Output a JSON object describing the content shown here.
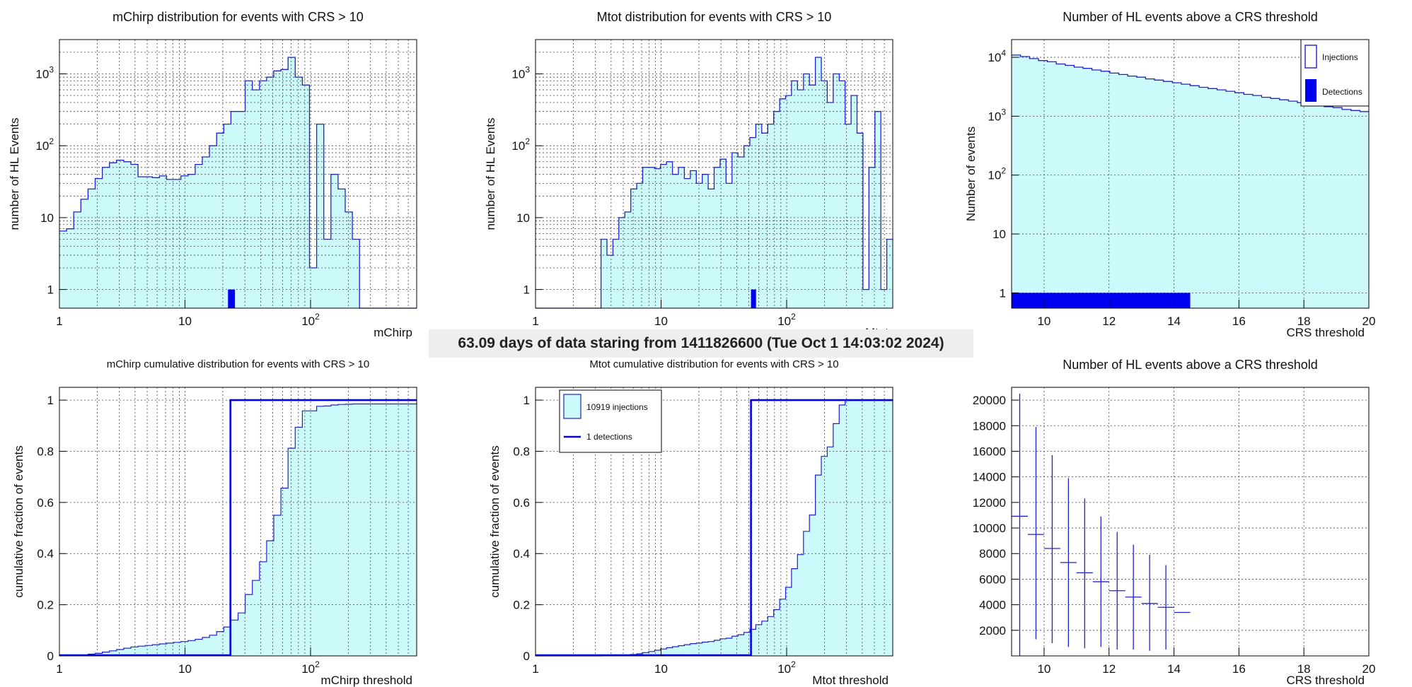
{
  "banner": "63.09 days of data staring from 1411826600 (Tue Oct  1 14:03:02 2024)",
  "colors": {
    "fill": "#ccfafa",
    "line": "#2020d0",
    "detect": "#0000f0"
  },
  "chart_data": [
    {
      "id": "mchirp",
      "type": "bar",
      "title": "mChirp distribution for events with CRS > 10",
      "xlabel": "mChirp",
      "ylabel": "number of HL Events",
      "xscale": "log",
      "yscale": "log",
      "xlim": [
        1,
        700
      ],
      "ylim": [
        0.55,
        3000
      ],
      "xticks": [
        {
          "v": 1,
          "t": "1"
        },
        {
          "v": 10,
          "t": "10"
        },
        {
          "v": 100,
          "t": "10",
          "sup": "2"
        }
      ],
      "yticks": [
        {
          "v": 1,
          "t": "1"
        },
        {
          "v": 10,
          "t": "10"
        },
        {
          "v": 100,
          "t": "10",
          "sup": "2"
        },
        {
          "v": 1000,
          "t": "10",
          "sup": "3"
        }
      ],
      "grid": true,
      "injections": [
        6.5,
        7,
        12,
        18,
        25,
        35,
        50,
        58,
        63,
        60,
        55,
        37,
        37,
        36,
        38,
        34,
        34,
        38,
        40,
        55,
        70,
        100,
        150,
        200,
        300,
        300,
        800,
        600,
        800,
        900,
        1100,
        1150,
        1700,
        900,
        700,
        2,
        200,
        5,
        40,
        25,
        12,
        5,
        0.1,
        0.1,
        0.1,
        0.1,
        0.1,
        0.1,
        0.1,
        0.1
      ],
      "detections": [
        {
          "x0": 22,
          "x1": 25,
          "y": 1
        }
      ]
    },
    {
      "id": "mtot",
      "type": "bar",
      "title": "Mtot distribution for events with CRS > 10",
      "xlabel": "Mtot",
      "ylabel": "number of HL Events",
      "xscale": "log",
      "yscale": "log",
      "xlim": [
        1,
        700
      ],
      "ylim": [
        0.55,
        3000
      ],
      "xticks": [
        {
          "v": 1,
          "t": "1"
        },
        {
          "v": 10,
          "t": "10"
        },
        {
          "v": 100,
          "t": "10",
          "sup": "2"
        }
      ],
      "yticks": [
        {
          "v": 1,
          "t": "1"
        },
        {
          "v": 10,
          "t": "10"
        },
        {
          "v": 100,
          "t": "10",
          "sup": "2"
        },
        {
          "v": 1000,
          "t": "10",
          "sup": "3"
        }
      ],
      "grid": true,
      "injections": [
        0.1,
        0.1,
        0.1,
        0.1,
        0.1,
        0.1,
        0.1,
        0.1,
        0.1,
        0.1,
        0.1,
        5,
        3,
        5,
        10,
        12,
        25,
        30,
        50,
        50,
        48,
        55,
        60,
        40,
        50,
        35,
        45,
        30,
        40,
        25,
        50,
        65,
        30,
        80,
        70,
        100,
        130,
        200,
        150,
        200,
        300,
        450,
        500,
        800,
        600,
        1000,
        700,
        1700,
        800,
        400,
        1000,
        800,
        200,
        500,
        150,
        1,
        50,
        300,
        1,
        5
      ],
      "detections": [
        {
          "x0": 52,
          "x1": 57,
          "y": 1
        }
      ]
    },
    {
      "id": "crs-counts",
      "type": "bar",
      "title": "Number of HL events above a CRS threshold",
      "xlabel": "CRS threshold",
      "ylabel": "Number of events",
      "xscale": "linear",
      "yscale": "log",
      "xlim": [
        9,
        20
      ],
      "ylim": [
        0.55,
        20000
      ],
      "xticks": [
        {
          "v": 10,
          "t": "10"
        },
        {
          "v": 12,
          "t": "12"
        },
        {
          "v": 14,
          "t": "14"
        },
        {
          "v": 16,
          "t": "16"
        },
        {
          "v": 18,
          "t": "18"
        },
        {
          "v": 20,
          "t": "20"
        }
      ],
      "yticks": [
        {
          "v": 1,
          "t": "1"
        },
        {
          "v": 10,
          "t": "10"
        },
        {
          "v": 100,
          "t": "10",
          "sup": "2"
        },
        {
          "v": 1000,
          "t": "10",
          "sup": "3"
        },
        {
          "v": 10000,
          "t": "10",
          "sup": "4"
        }
      ],
      "grid": true,
      "injections": [
        10919,
        10300,
        9500,
        8800,
        8400,
        7700,
        7300,
        6800,
        6500,
        6100,
        5800,
        5400,
        5100,
        4800,
        4600,
        4300,
        4100,
        3900,
        3700,
        3500,
        3300,
        3100,
        2950,
        2800,
        2650,
        2500,
        2350,
        2250,
        2100,
        2000,
        1900,
        1800,
        1700,
        1600,
        1550,
        1450,
        1400,
        1300,
        1250,
        1200
      ],
      "detections": [
        {
          "x0": 9,
          "x1": 14.5,
          "y": 1
        }
      ],
      "legend": {
        "position": "top-right",
        "entries": [
          "Injections",
          "Detections"
        ]
      }
    },
    {
      "id": "mchirp-cum",
      "type": "line",
      "title": "mChirp cumulative distribution for events with CRS > 10",
      "xlabel": "mChirp threshold",
      "ylabel": "cumulative fraction of events",
      "xscale": "log",
      "yscale": "linear",
      "xlim": [
        1,
        700
      ],
      "ylim": [
        0,
        1.05
      ],
      "xticks": [
        {
          "v": 1,
          "t": "1"
        },
        {
          "v": 10,
          "t": "10"
        },
        {
          "v": 100,
          "t": "10",
          "sup": "2"
        }
      ],
      "yticks": [
        {
          "v": 0,
          "t": "0"
        },
        {
          "v": 0.2,
          "t": "0.2"
        },
        {
          "v": 0.4,
          "t": "0.4"
        },
        {
          "v": 0.6,
          "t": "0.6"
        },
        {
          "v": 0.8,
          "t": "0.8"
        },
        {
          "v": 1,
          "t": "1"
        }
      ],
      "grid": true,
      "cumulative": [
        0.0006,
        0.0013,
        0.0025,
        0.004,
        0.007,
        0.01,
        0.015,
        0.02,
        0.025,
        0.03,
        0.035,
        0.038,
        0.041,
        0.044,
        0.047,
        0.05,
        0.053,
        0.056,
        0.06,
        0.065,
        0.072,
        0.081,
        0.095,
        0.113,
        0.14,
        0.168,
        0.24,
        0.295,
        0.368,
        0.45,
        0.55,
        0.656,
        0.812,
        0.894,
        0.958,
        0.958,
        0.976,
        0.977,
        0.981,
        0.983,
        0.984,
        0.985,
        0.985,
        0.985,
        0.985,
        0.985,
        0.985,
        0.985,
        0.985,
        0.985
      ],
      "detection_step_x": 23
    },
    {
      "id": "mtot-cum",
      "type": "line",
      "title": "Mtot cumulative distribution for events with CRS > 10",
      "xlabel": "Mtot threshold",
      "ylabel": "cumulative fraction of events",
      "xscale": "log",
      "yscale": "linear",
      "xlim": [
        1,
        700
      ],
      "ylim": [
        0,
        1.05
      ],
      "xticks": [
        {
          "v": 1,
          "t": "1"
        },
        {
          "v": 10,
          "t": "10"
        },
        {
          "v": 100,
          "t": "10",
          "sup": "2"
        }
      ],
      "yticks": [
        {
          "v": 0,
          "t": "0"
        },
        {
          "v": 0.2,
          "t": "0.2"
        },
        {
          "v": 0.4,
          "t": "0.4"
        },
        {
          "v": 0.6,
          "t": "0.6"
        },
        {
          "v": 0.8,
          "t": "0.8"
        },
        {
          "v": 1,
          "t": "1"
        }
      ],
      "grid": true,
      "cumulative": [
        0,
        0,
        0,
        0,
        0,
        0,
        0,
        0,
        0,
        0,
        0,
        0.0005,
        0.0008,
        0.0012,
        0.0021,
        0.0032,
        0.0055,
        0.0082,
        0.013,
        0.017,
        0.022,
        0.027,
        0.032,
        0.036,
        0.04,
        0.044,
        0.048,
        0.05,
        0.054,
        0.056,
        0.061,
        0.067,
        0.069,
        0.077,
        0.083,
        0.092,
        0.104,
        0.122,
        0.136,
        0.154,
        0.181,
        0.222,
        0.268,
        0.341,
        0.396,
        0.487,
        0.551,
        0.707,
        0.78,
        0.817,
        0.908,
        0.981,
        0.999,
        1.0,
        1.0,
        1.0,
        1.0,
        1.0,
        1.0,
        1.0
      ],
      "detection_step_x": 52,
      "legend": {
        "position": "top-left",
        "entries": [
          "10919 injections",
          "1 detections"
        ]
      }
    },
    {
      "id": "crs-errors",
      "type": "scatter",
      "title": "Number of HL events above a CRS threshold",
      "xlabel": "CRS threshold",
      "ylabel": "",
      "xscale": "linear",
      "yscale": "linear",
      "xlim": [
        9,
        20
      ],
      "ylim": [
        0,
        21000
      ],
      "xticks": [
        {
          "v": 10,
          "t": "10"
        },
        {
          "v": 12,
          "t": "12"
        },
        {
          "v": 14,
          "t": "14"
        },
        {
          "v": 16,
          "t": "16"
        },
        {
          "v": 18,
          "t": "18"
        },
        {
          "v": 20,
          "t": "20"
        }
      ],
      "yticks": [
        {
          "v": 2000,
          "t": "2000"
        },
        {
          "v": 4000,
          "t": "4000"
        },
        {
          "v": 6000,
          "t": "6000"
        },
        {
          "v": 8000,
          "t": "8000"
        },
        {
          "v": 10000,
          "t": "10000"
        },
        {
          "v": 12000,
          "t": "12000"
        },
        {
          "v": 14000,
          "t": "14000"
        },
        {
          "v": 16000,
          "t": "16000"
        },
        {
          "v": 18000,
          "t": "18000"
        },
        {
          "v": 20000,
          "t": "20000"
        }
      ],
      "grid": true,
      "points": [
        {
          "x0": 9.0,
          "x1": 9.5,
          "y": 10919,
          "lo": 0,
          "hi": 20500
        },
        {
          "x0": 9.5,
          "x1": 10.0,
          "y": 9500,
          "lo": 1300,
          "hi": 17900
        },
        {
          "x0": 10.0,
          "x1": 10.5,
          "y": 8400,
          "lo": 1000,
          "hi": 15700
        },
        {
          "x0": 10.5,
          "x1": 11.0,
          "y": 7300,
          "lo": 700,
          "hi": 13900
        },
        {
          "x0": 11.0,
          "x1": 11.5,
          "y": 6500,
          "lo": 600,
          "hi": 12300
        },
        {
          "x0": 11.5,
          "x1": 12.0,
          "y": 5800,
          "lo": 700,
          "hi": 10900
        },
        {
          "x0": 12.0,
          "x1": 12.5,
          "y": 5100,
          "lo": 500,
          "hi": 9700
        },
        {
          "x0": 12.5,
          "x1": 13.0,
          "y": 4600,
          "lo": 500,
          "hi": 8700
        },
        {
          "x0": 13.0,
          "x1": 13.5,
          "y": 4100,
          "lo": 400,
          "hi": 7900
        },
        {
          "x0": 13.5,
          "x1": 14.0,
          "y": 3800,
          "lo": 500,
          "hi": 7100
        },
        {
          "x0": 14.0,
          "x1": 14.5,
          "y": 3400,
          "lo": 3400,
          "hi": 3400
        }
      ]
    }
  ]
}
